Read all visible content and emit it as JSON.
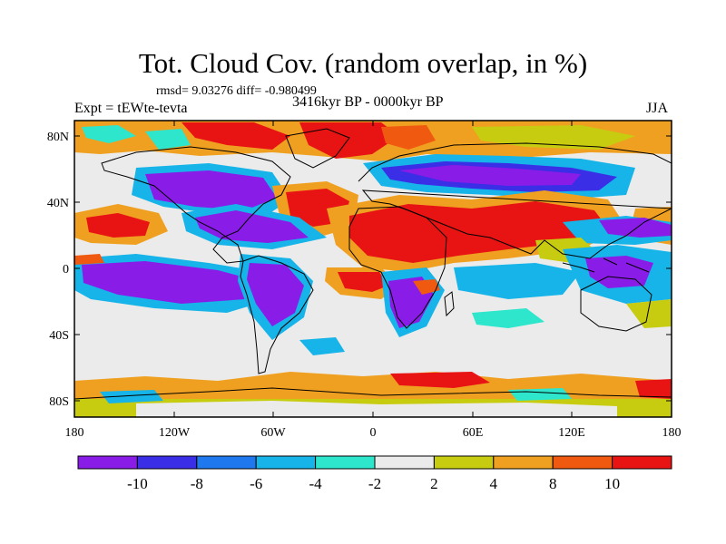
{
  "title": "Tot. Cloud Cov. (random overlap, in %)",
  "stats_line": "rmsd= 9.03276 diff= -0.980499",
  "experiment_label": "Expt = tEWte-tevta",
  "period_label": "3416kyr BP - 0000kyr BP",
  "season_label": "JJA",
  "lat_ticks": [
    "80N",
    "40N",
    "0",
    "40S",
    "80S"
  ],
  "lon_ticks": [
    "180",
    "120W",
    "60W",
    "0",
    "60E",
    "120E",
    "180"
  ],
  "colorbar": {
    "labels": [
      "-10",
      "-8",
      "-6",
      "-4",
      "-2",
      "2",
      "4",
      "8",
      "10"
    ],
    "colors": [
      "#8a1ce8",
      "#3a2ee6",
      "#1f78ee",
      "#16b4e8",
      "#2de6cc",
      "#ebebeb",
      "#c8cc10",
      "#f0a020",
      "#f05a10",
      "#e81414"
    ]
  }
}
